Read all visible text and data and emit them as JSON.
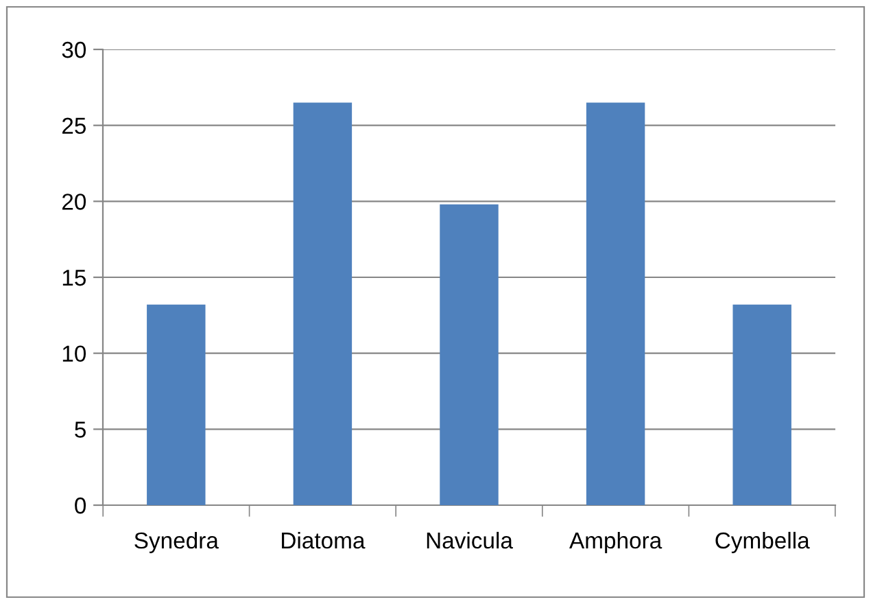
{
  "chart_data": {
    "type": "bar",
    "categories": [
      "Synedra",
      "Diatoma",
      "Navicula",
      "Amphora",
      "Cymbella"
    ],
    "values": [
      13.2,
      26.5,
      19.8,
      26.5,
      13.2
    ],
    "color": "#4f81bd",
    "ylim": [
      0,
      30
    ],
    "yticks": [
      0,
      5,
      10,
      15,
      20,
      25,
      30
    ],
    "grid": "y",
    "legend": false
  }
}
